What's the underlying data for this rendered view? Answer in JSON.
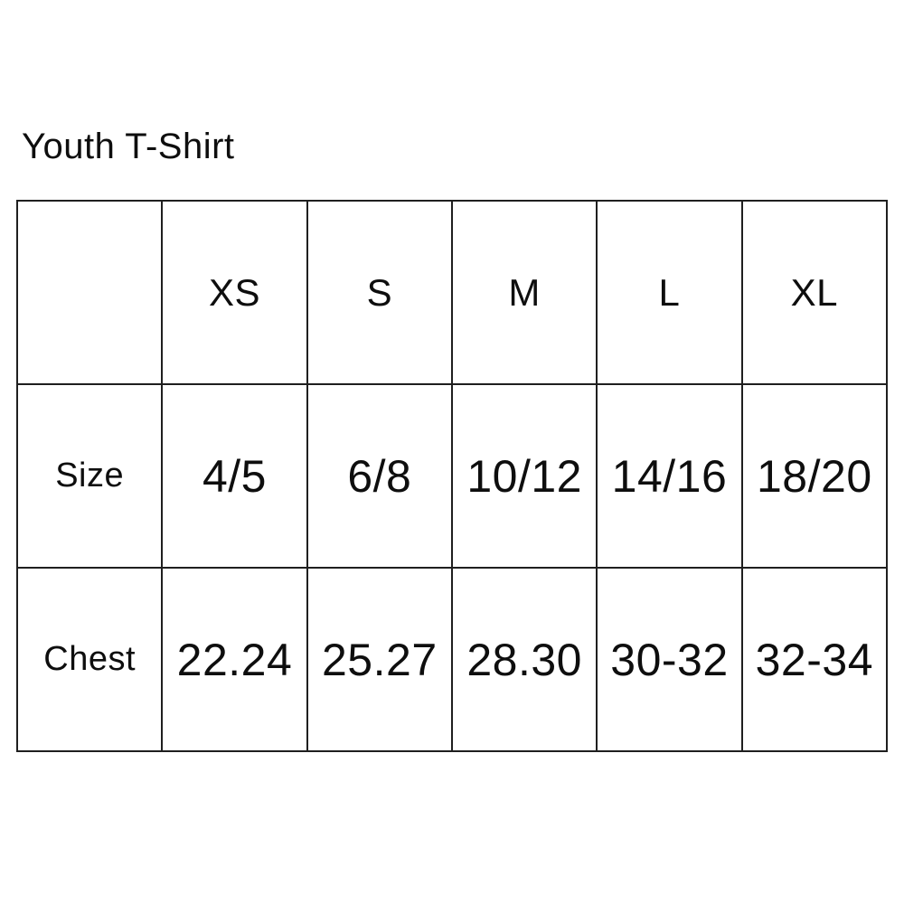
{
  "title": "Youth T-Shirt",
  "table": {
    "columns": [
      "",
      "XS",
      "S",
      "M",
      "L",
      "XL"
    ],
    "rows": [
      {
        "label": "Size",
        "values": [
          "4/5",
          "6/8",
          "10/12",
          "14/16",
          "18/20"
        ]
      },
      {
        "label": "Chest",
        "values": [
          "22.24",
          "25.27",
          "28.30",
          "30-32",
          "32-34"
        ]
      }
    ]
  },
  "colors": {
    "background": "#ffffff",
    "text": "#0e0e0e",
    "border": "#1f1f1f"
  }
}
